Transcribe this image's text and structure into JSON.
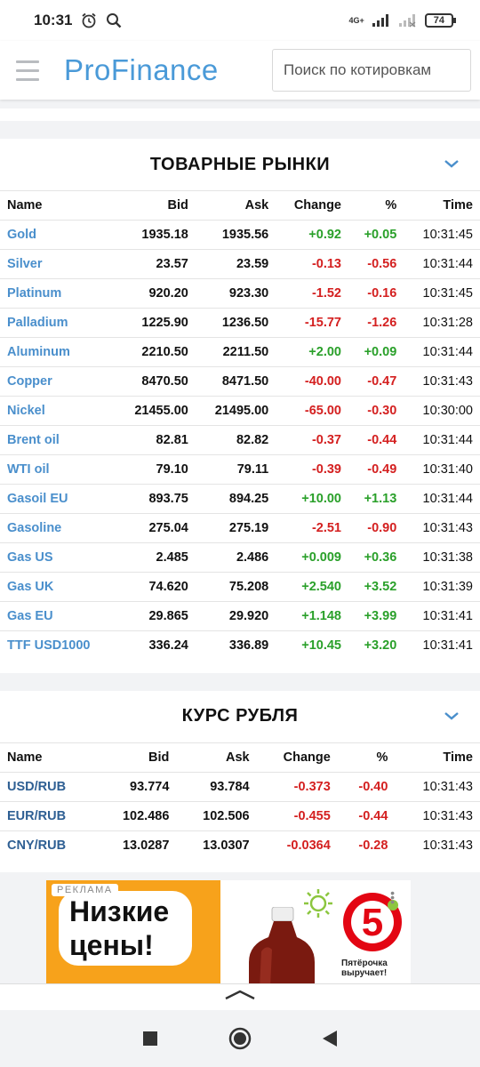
{
  "status": {
    "time": "10:31",
    "network": "4G+",
    "battery": "74"
  },
  "header": {
    "logo_pro": "Pro",
    "logo_finance": "Finance",
    "search_placeholder": "Поиск по котировкам"
  },
  "commodities": {
    "title": "ТОВАРНЫЕ РЫНКИ",
    "columns": [
      "Name",
      "Bid",
      "Ask",
      "Change",
      "%",
      "Time"
    ],
    "rows": [
      {
        "name": "Gold",
        "bid": "1935.18",
        "ask": "1935.56",
        "change": "+0.92",
        "pct": "+0.05",
        "time": "10:31:45"
      },
      {
        "name": "Silver",
        "bid": "23.57",
        "ask": "23.59",
        "change": "-0.13",
        "pct": "-0.56",
        "time": "10:31:44"
      },
      {
        "name": "Platinum",
        "bid": "920.20",
        "ask": "923.30",
        "change": "-1.52",
        "pct": "-0.16",
        "time": "10:31:45"
      },
      {
        "name": "Palladium",
        "bid": "1225.90",
        "ask": "1236.50",
        "change": "-15.77",
        "pct": "-1.26",
        "time": "10:31:28"
      },
      {
        "name": "Aluminum",
        "bid": "2210.50",
        "ask": "2211.50",
        "change": "+2.00",
        "pct": "+0.09",
        "time": "10:31:44"
      },
      {
        "name": "Copper",
        "bid": "8470.50",
        "ask": "8471.50",
        "change": "-40.00",
        "pct": "-0.47",
        "time": "10:31:43"
      },
      {
        "name": "Nickel",
        "bid": "21455.00",
        "ask": "21495.00",
        "change": "-65.00",
        "pct": "-0.30",
        "time": "10:30:00"
      },
      {
        "name": "Brent oil",
        "bid": "82.81",
        "ask": "82.82",
        "change": "-0.37",
        "pct": "-0.44",
        "time": "10:31:44"
      },
      {
        "name": "WTI oil",
        "bid": "79.10",
        "ask": "79.11",
        "change": "-0.39",
        "pct": "-0.49",
        "time": "10:31:40"
      },
      {
        "name": "Gasoil EU",
        "bid": "893.75",
        "ask": "894.25",
        "change": "+10.00",
        "pct": "+1.13",
        "time": "10:31:44"
      },
      {
        "name": "Gasoline",
        "bid": "275.04",
        "ask": "275.19",
        "change": "-2.51",
        "pct": "-0.90",
        "time": "10:31:43"
      },
      {
        "name": "Gas US",
        "bid": "2.485",
        "ask": "2.486",
        "change": "+0.009",
        "pct": "+0.36",
        "time": "10:31:38"
      },
      {
        "name": "Gas UK",
        "bid": "74.620",
        "ask": "75.208",
        "change": "+2.540",
        "pct": "+3.52",
        "time": "10:31:39"
      },
      {
        "name": "Gas EU",
        "bid": "29.865",
        "ask": "29.920",
        "change": "+1.148",
        "pct": "+3.99",
        "time": "10:31:41"
      },
      {
        "name": "TTF USD1000",
        "bid": "336.24",
        "ask": "336.89",
        "change": "+10.45",
        "pct": "+3.20",
        "time": "10:31:41"
      }
    ]
  },
  "ruble": {
    "title": "КУРС РУБЛЯ",
    "columns": [
      "Name",
      "Bid",
      "Ask",
      "Change",
      "%",
      "Time"
    ],
    "rows": [
      {
        "name": "USD/RUB",
        "bid": "93.774",
        "ask": "93.784",
        "change": "-0.373",
        "pct": "-0.40",
        "time": "10:31:43"
      },
      {
        "name": "EUR/RUB",
        "bid": "102.486",
        "ask": "102.506",
        "change": "-0.455",
        "pct": "-0.44",
        "time": "10:31:43"
      },
      {
        "name": "CNY/RUB",
        "bid": "13.0287",
        "ask": "13.0307",
        "change": "-0.0364",
        "pct": "-0.28",
        "time": "10:31:43"
      }
    ]
  },
  "ad": {
    "label": "РЕКЛАМА",
    "headline_1": "Низкие",
    "headline_2": "цены!",
    "brand_1": "Пятёрочка",
    "brand_2": "выручает!"
  },
  "colors": {
    "positive": "#2aa02a",
    "negative": "#d42020",
    "link": "#4a8fcc",
    "brand": "#4a9ad8"
  }
}
